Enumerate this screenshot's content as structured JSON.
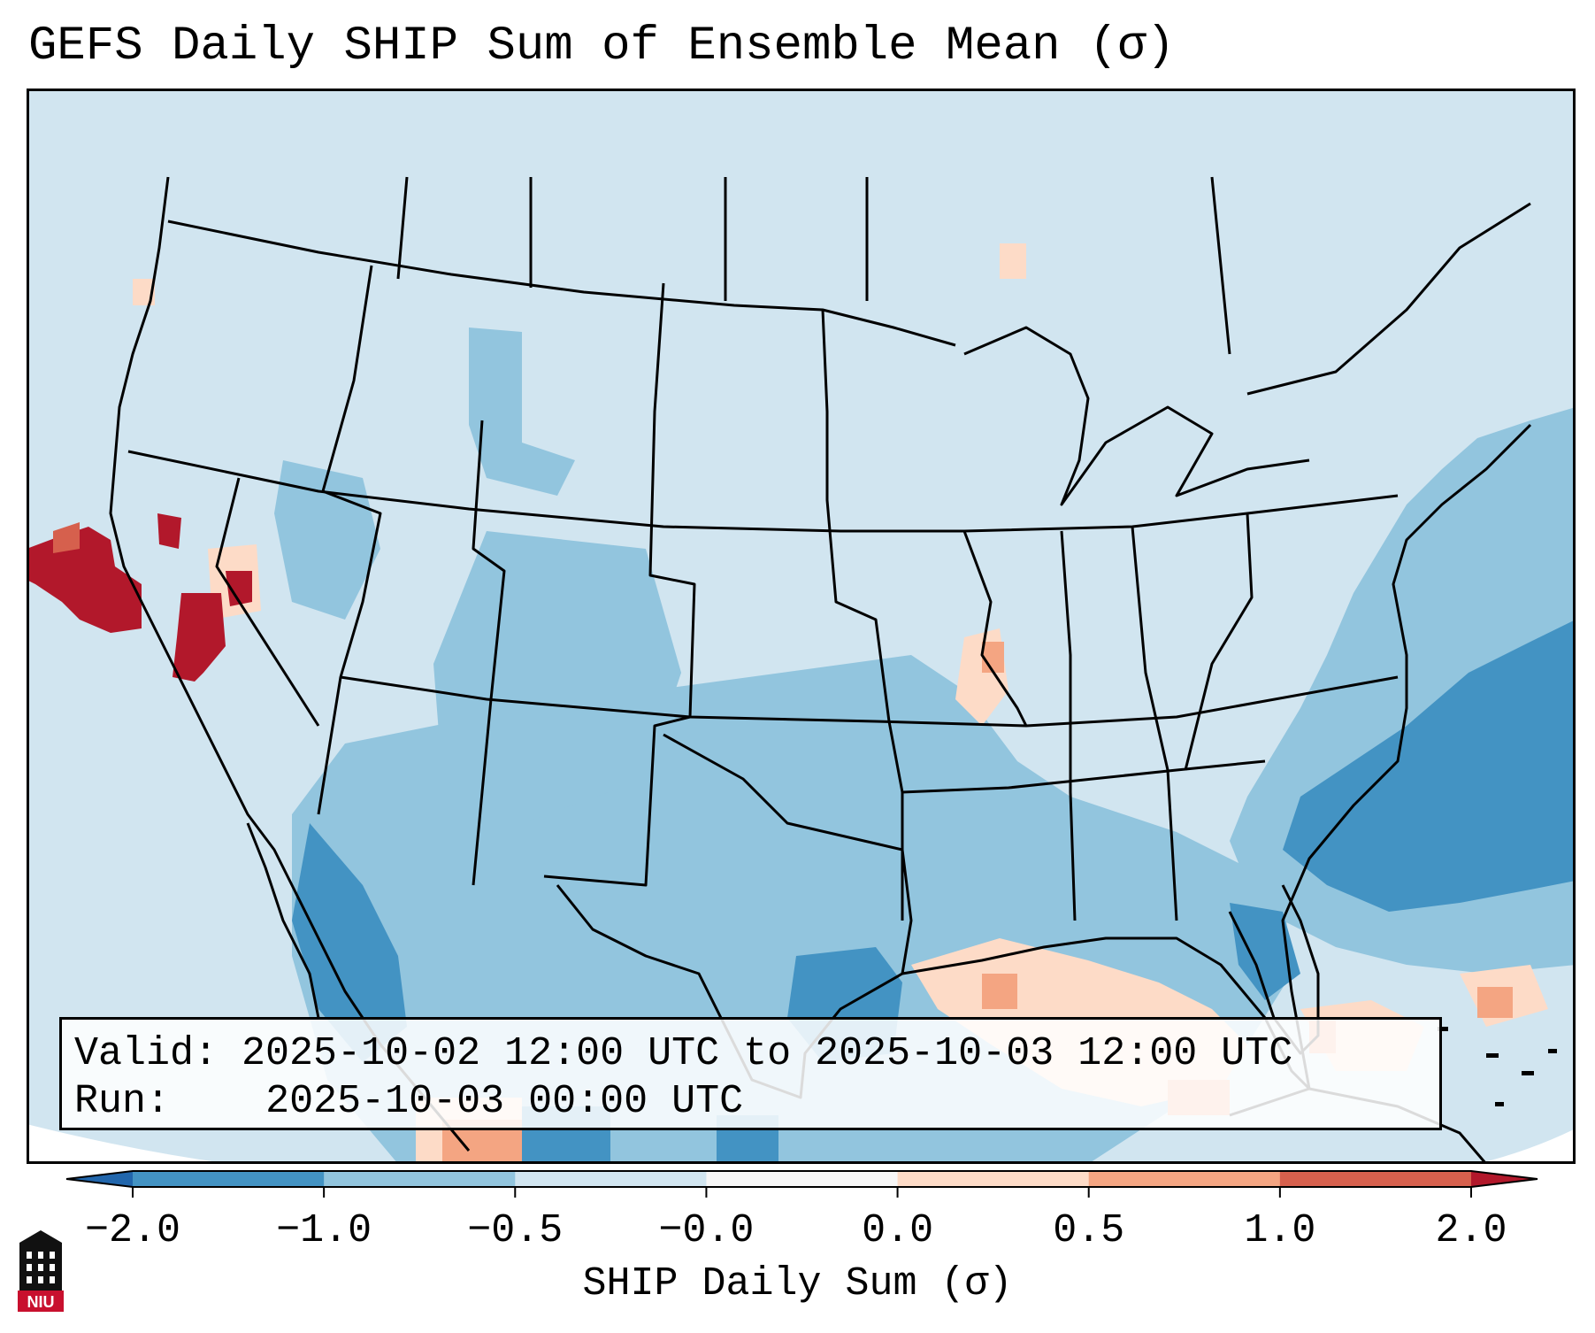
{
  "title": "GEFS Daily SHIP Sum of Ensemble Mean (σ)",
  "info": {
    "valid_label": "Valid:",
    "valid_value": "2025-10-02 12:00 UTC to 2025-10-03 12:00 UTC",
    "run_label": "Run:",
    "run_value": "2025-10-03 00:00 UTC"
  },
  "colorbar": {
    "label": "SHIP Daily Sum (σ)",
    "tick_labels": [
      "−2.0",
      "−1.0",
      "−0.5",
      "−0.0",
      "0.0",
      "0.5",
      "1.0",
      "2.0"
    ],
    "bin_colors": [
      "#4393c3",
      "#92c5de",
      "#d1e5f0",
      "#f7f7f7",
      "#fddbc7",
      "#f4a582",
      "#d6604d"
    ],
    "under_color": "#2166ac",
    "over_color": "#b2182b"
  },
  "map": {
    "background_color": "#d1e5f0",
    "outside_color": "#ffffff",
    "border_color": "#000000",
    "region_levels": [
      {
        "region": "Gulf of Mexico and western Atlantic",
        "level": "-1.0 to -0.5"
      },
      {
        "region": "open Atlantic east of Carolinas",
        "level": "-2.0 to -1.0"
      },
      {
        "region": "Texas, Oklahoma, Gulf Coast states",
        "level": "-1.0 to -0.5"
      },
      {
        "region": "Northern California coast",
        "level": "> 2.0"
      },
      {
        "region": "Eastern Gulf and Caribbean",
        "level": "0.0 to 1.0"
      }
    ]
  },
  "logo": {
    "text": "NIU",
    "color": "#c8102e"
  }
}
